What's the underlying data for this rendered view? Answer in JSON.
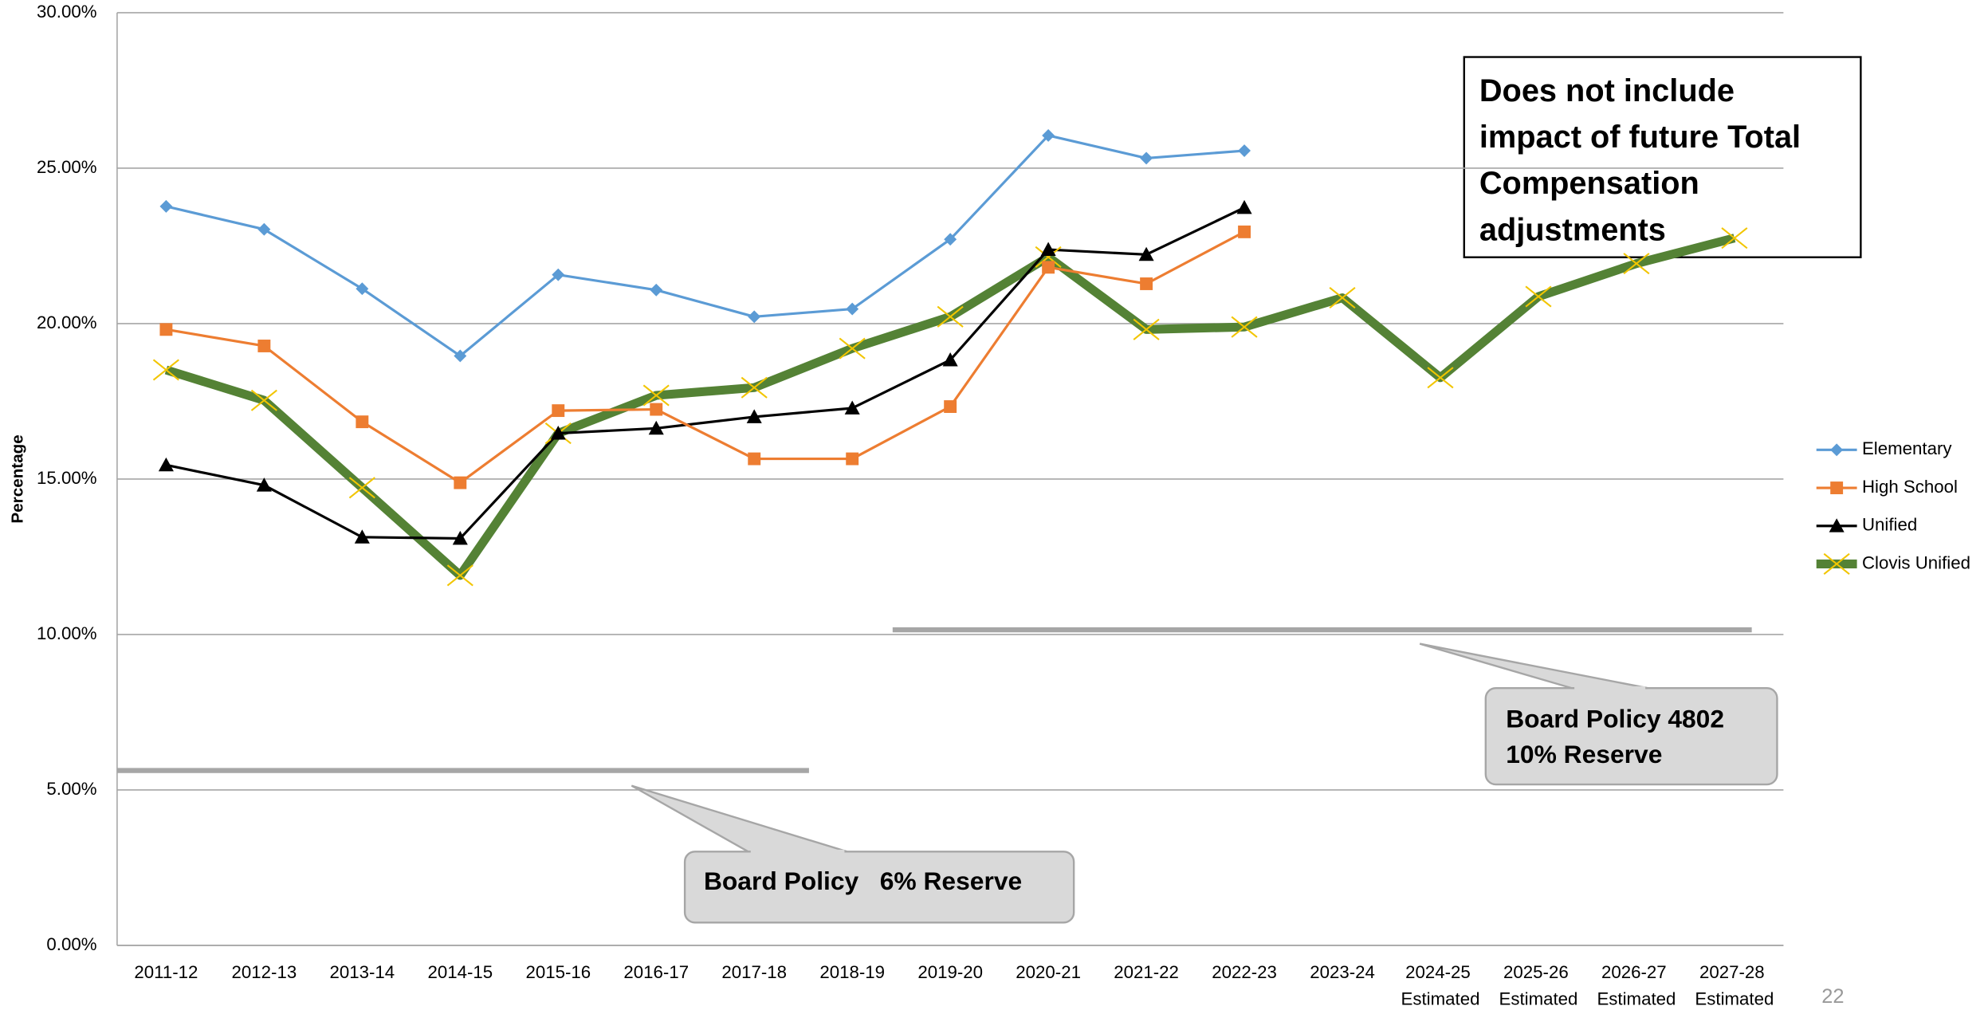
{
  "chart_data": {
    "type": "line",
    "y_axis_label": "Percentage",
    "categories": [
      "2011-12",
      "2012-13",
      "2013-14",
      "2014-15",
      "2015-16",
      "2016-17",
      "2017-18",
      "2018-19",
      "2019-20",
      "2020-21",
      "2021-22",
      "2022-23",
      "2023-24",
      "2024-25 Estimated",
      "2025-26 Estimated",
      "2026-27 Estimated",
      "2027-28 Estimated"
    ],
    "series": [
      {
        "name": "Elementary",
        "color": "#5b9bd5",
        "marker": "diamond",
        "values": [
          23.77,
          23.03,
          21.12,
          18.96,
          21.57,
          21.08,
          20.22,
          20.47,
          22.71,
          26.05,
          25.32,
          25.56,
          null,
          null,
          null,
          null,
          null
        ]
      },
      {
        "name": "High School",
        "color": "#ed7d31",
        "marker": "square",
        "values": [
          19.81,
          19.28,
          16.84,
          14.88,
          17.2,
          17.24,
          15.65,
          15.65,
          17.33,
          21.81,
          21.28,
          22.95,
          null,
          null,
          null,
          null,
          null
        ]
      },
      {
        "name": "Unified",
        "color": "#000000",
        "marker": "triangle",
        "values": [
          15.45,
          14.8,
          13.13,
          13.09,
          16.47,
          16.63,
          17.0,
          17.28,
          18.83,
          22.38,
          22.22,
          23.73,
          null,
          null,
          null,
          null,
          null
        ]
      },
      {
        "name": "Clovis Unified",
        "color": "#548235",
        "marker": "x",
        "marker_color": "#f2c500",
        "line_width": 7,
        "values": [
          18.51,
          17.53,
          14.72,
          11.9,
          16.47,
          17.69,
          17.94,
          19.2,
          20.22,
          22.14,
          19.81,
          19.89,
          20.83,
          18.26,
          20.87,
          21.93,
          22.75
        ]
      }
    ],
    "ylim": [
      0,
      30
    ],
    "yticks": [
      {
        "value": 0,
        "label": "0.00%"
      },
      {
        "value": 5,
        "label": "5.00%"
      },
      {
        "value": 10,
        "label": "10.00%"
      },
      {
        "value": 15,
        "label": "15.00%"
      },
      {
        "value": 20,
        "label": "20.00%"
      },
      {
        "value": 25,
        "label": "25.00%"
      },
      {
        "value": 30,
        "label": "30.00%"
      }
    ],
    "grid": true,
    "legend": "right",
    "note_lines": [
      "Does not include",
      "impact of future Total",
      "Compensation",
      "adjustments"
    ],
    "callout_6": "Board Policy   6% Reserve",
    "callout_10_lines": [
      "Board Policy 4802",
      "10% Reserve"
    ]
  },
  "page_number": "22"
}
